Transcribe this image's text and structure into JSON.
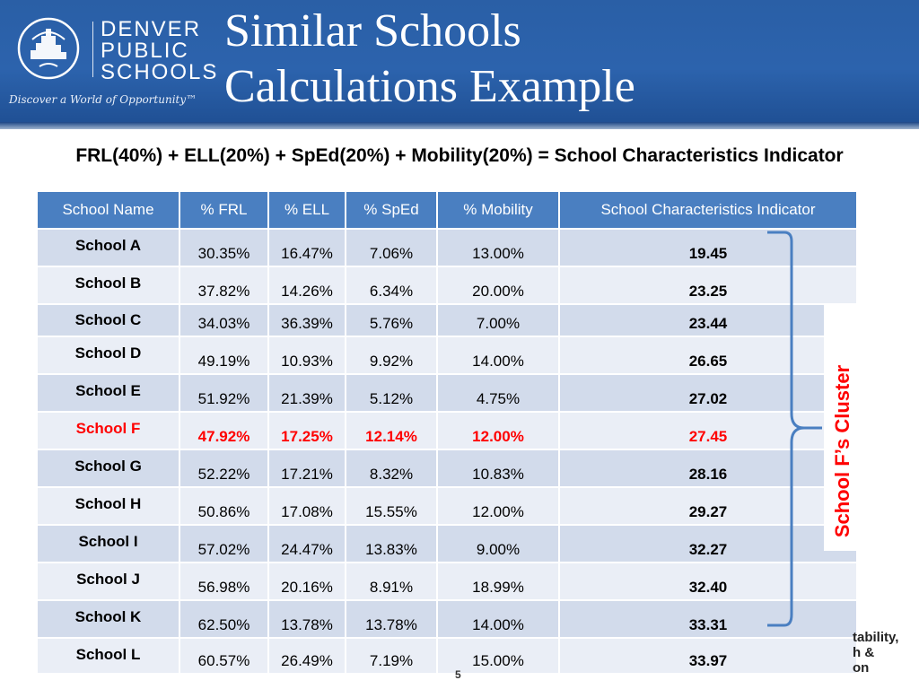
{
  "header": {
    "logo": {
      "lines": [
        "DENVER",
        "PUBLIC",
        "SCHOOLS"
      ],
      "tagline": "Discover a World of Opportunity™"
    },
    "title_line1": "Similar Schools",
    "title_line2": "Calculations Example"
  },
  "formula": "FRL(40%) + ELL(20%) + SpEd(20%) + Mobility(20%) = School Characteristics Indicator",
  "table": {
    "columns": [
      "School Name",
      "% FRL",
      "% ELL",
      "% SpEd",
      "% Mobility",
      "School  Characteristics Indicator"
    ],
    "rows": [
      {
        "name": "School A",
        "frl": "30.35%",
        "ell": "16.47%",
        "sped": "7.06%",
        "mobility": "13.00%",
        "sci": "19.45"
      },
      {
        "name": "School B",
        "frl": "37.82%",
        "ell": "14.26%",
        "sped": "6.34%",
        "mobility": "20.00%",
        "sci": "23.25"
      },
      {
        "name": "School C",
        "frl": "34.03%",
        "ell": "36.39%",
        "sped": "5.76%",
        "mobility": "7.00%",
        "sci": "23.44"
      },
      {
        "name": "School D",
        "frl": "49.19%",
        "ell": "10.93%",
        "sped": "9.92%",
        "mobility": "14.00%",
        "sci": "26.65"
      },
      {
        "name": "School E",
        "frl": "51.92%",
        "ell": "21.39%",
        "sped": "5.12%",
        "mobility": "4.75%",
        "sci": "27.02"
      },
      {
        "name": "School F",
        "frl": "47.92%",
        "ell": "17.25%",
        "sped": "12.14%",
        "mobility": "12.00%",
        "sci": "27.45",
        "highlight": true
      },
      {
        "name": "School G",
        "frl": "52.22%",
        "ell": "17.21%",
        "sped": "8.32%",
        "mobility": "10.83%",
        "sci": "28.16"
      },
      {
        "name": "School H",
        "frl": "50.86%",
        "ell": "17.08%",
        "sped": "15.55%",
        "mobility": "12.00%",
        "sci": "29.27"
      },
      {
        "name": "School I",
        "frl": "57.02%",
        "ell": "24.47%",
        "sped": "13.83%",
        "mobility": "9.00%",
        "sci": "32.27"
      },
      {
        "name": "School J",
        "frl": "56.98%",
        "ell": "20.16%",
        "sped": "8.91%",
        "mobility": "18.99%",
        "sci": "32.40"
      },
      {
        "name": "School K",
        "frl": "62.50%",
        "ell": "13.78%",
        "sped": "13.78%",
        "mobility": "14.00%",
        "sci": "33.31"
      },
      {
        "name": "School L",
        "frl": "60.57%",
        "ell": "26.49%",
        "sped": "7.19%",
        "mobility": "15.00%",
        "sci": "33.97"
      }
    ]
  },
  "cluster_label": "School F’s Cluster",
  "footer": {
    "lines": [
      "tability,",
      "h &",
      "on"
    ],
    "page_number": "5"
  },
  "colors": {
    "header_blue": "#2c63ad",
    "table_header": "#4a7fc1",
    "row_dark": "#d2dbeb",
    "row_light": "#eaeef6",
    "highlight_red": "#ff0000",
    "bracket": "#4a7fc1"
  },
  "icons": [
    "dps-logo-icon",
    "bracket-icon"
  ]
}
